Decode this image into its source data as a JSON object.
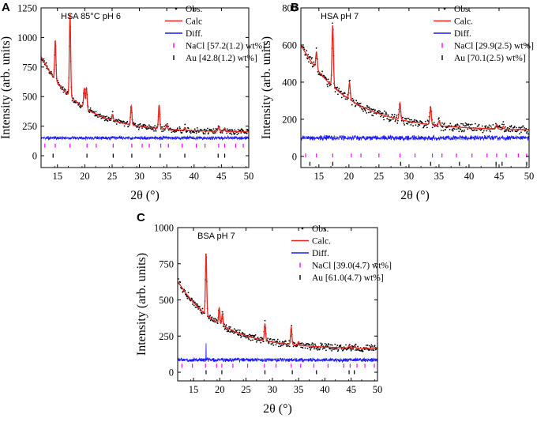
{
  "chart_data": [
    {
      "id": "A",
      "type": "line",
      "panel_letter": "A",
      "sample_label": "HSA 85°C pH 6",
      "xlabel": "2θ (°)",
      "ylabel": "Intensity (arb. units)",
      "xlim": [
        12,
        50
      ],
      "ylim": [
        -100,
        1250
      ],
      "xticks": [
        15,
        20,
        25,
        30,
        35,
        40,
        45,
        50
      ],
      "yticks": [
        0,
        250,
        500,
        750,
        1000,
        1250
      ],
      "series": [
        {
          "name": "Obs.",
          "style": "points",
          "color": "#000000"
        },
        {
          "name": "Calc.",
          "display": "Calc",
          "style": "line",
          "color": "#e8251f"
        },
        {
          "name": "Diff.",
          "style": "line",
          "color": "#1a1aff"
        },
        {
          "name": "NaCl",
          "display": "NaCl [57.2(1.2) wt%]",
          "style": "ticks",
          "color": "#ff00ff"
        },
        {
          "name": "Au",
          "display": "Au [42.8(1.2) wt%]",
          "style": "ticks",
          "color": "#000000"
        }
      ],
      "background": {
        "a": 200,
        "b": 640,
        "c": 7
      },
      "peaks": [
        {
          "x": 14.6,
          "h": 330
        },
        {
          "x": 17.3,
          "h": 700
        },
        {
          "x": 19.9,
          "h": 160
        },
        {
          "x": 20.3,
          "h": 180
        },
        {
          "x": 25.1,
          "h": 50
        },
        {
          "x": 28.5,
          "h": 160
        },
        {
          "x": 33.6,
          "h": 200
        },
        {
          "x": 35.0,
          "h": 40
        },
        {
          "x": 38.3,
          "h": 25
        },
        {
          "x": 44.5,
          "h": 40
        },
        {
          "x": 45.6,
          "h": 30
        }
      ],
      "diff_level": 150,
      "diff_noise": 22,
      "nacl_ticks": [
        12.7,
        14.6,
        17.3,
        20.4,
        22.1,
        25.2,
        28.6,
        30.5,
        31.8,
        33.9,
        35.3,
        37.8,
        40.4,
        42.0,
        44.5,
        45.6,
        47.6,
        49.0
      ],
      "nacl_level": 85,
      "au_ticks": [
        14.2,
        20.4,
        25.2,
        28.6,
        33.8,
        38.3,
        44.4,
        45.6
      ],
      "au_level": 0
    },
    {
      "id": "B",
      "type": "line",
      "panel_letter": "B",
      "sample_label": "HSA pH 7",
      "xlabel": "2θ (°)",
      "ylabel": "Intensity (arb. units)",
      "xlim": [
        12,
        50
      ],
      "ylim": [
        -60,
        800
      ],
      "xticks": [
        15,
        20,
        25,
        30,
        35,
        40,
        45,
        50
      ],
      "yticks": [
        0,
        200,
        400,
        600,
        800
      ],
      "series": [
        {
          "name": "Obs.",
          "style": "points",
          "color": "#000000"
        },
        {
          "name": "Calc.",
          "display": "Calc.",
          "style": "line",
          "color": "#e8251f"
        },
        {
          "name": "Diff.",
          "style": "line",
          "color": "#1a1aff"
        },
        {
          "name": "NaCl",
          "display": "NaCl [29.9(2.5) wt%]",
          "style": "ticks",
          "color": "#ff00ff"
        },
        {
          "name": "Au",
          "display": "Au [70.1(2.5) wt%]",
          "style": "ticks",
          "color": "#000000"
        }
      ],
      "background": {
        "a": 140,
        "b": 460,
        "c": 8
      },
      "peaks": [
        {
          "x": 14.6,
          "h": 90
        },
        {
          "x": 17.3,
          "h": 330
        },
        {
          "x": 20.1,
          "h": 90
        },
        {
          "x": 28.5,
          "h": 90
        },
        {
          "x": 33.6,
          "h": 95
        },
        {
          "x": 35.0,
          "h": 25
        },
        {
          "x": 44.6,
          "h": 25
        },
        {
          "x": 45.7,
          "h": 15
        }
      ],
      "diff_level": 100,
      "diff_noise": 20,
      "nacl_ticks": [
        12.8,
        14.6,
        17.3,
        20.4,
        22.0,
        25.0,
        28.5,
        31.0,
        33.9,
        35.5,
        37.9,
        40.5,
        43.0,
        44.6,
        46.2,
        48.2,
        49.6
      ],
      "nacl_level": 5,
      "au_ticks": [
        13.5,
        17.3,
        28.6,
        33.6,
        38.4,
        44.5,
        45.5,
        49.6
      ],
      "au_level": -40
    },
    {
      "id": "C",
      "type": "line",
      "panel_letter": "C",
      "sample_label": "BSA pH 7",
      "xlabel": "2θ (°)",
      "ylabel": "Intensity (arb. units)",
      "xlim": [
        12,
        50
      ],
      "ylim": [
        -60,
        1000
      ],
      "xticks": [
        15,
        20,
        25,
        30,
        35,
        40,
        45,
        50
      ],
      "yticks": [
        0,
        250,
        500,
        750,
        1000
      ],
      "series": [
        {
          "name": "Obs.",
          "style": "points",
          "color": "#000000"
        },
        {
          "name": "Calc.",
          "display": "Calc.",
          "style": "line",
          "color": "#e8251f"
        },
        {
          "name": "Diff.",
          "style": "line",
          "color": "#1a1aff"
        },
        {
          "name": "NaCl",
          "display": "NaCl [39.0(4.7) wt%]",
          "style": "ticks",
          "color": "#ff00ff"
        },
        {
          "name": "Au",
          "display": "Au [61.0(4.7) wt%]",
          "style": "ticks",
          "color": "#000000"
        }
      ],
      "background": {
        "a": 160,
        "b": 470,
        "c": 8
      },
      "peaks": [
        {
          "x": 17.4,
          "h": 420
        },
        {
          "x": 19.9,
          "h": 110
        },
        {
          "x": 20.5,
          "h": 80
        },
        {
          "x": 28.6,
          "h": 115
        },
        {
          "x": 33.6,
          "h": 120
        },
        {
          "x": 35.0,
          "h": 25
        },
        {
          "x": 44.6,
          "h": 20
        },
        {
          "x": 45.7,
          "h": 15
        }
      ],
      "diff_level": 85,
      "diff_noise": 20,
      "diff_spike": {
        "x": 17.4,
        "value": 200
      },
      "nacl_ticks": [
        12.8,
        14.8,
        17.3,
        19.4,
        20.4,
        22.5,
        25.3,
        28.5,
        30.7,
        33.6,
        35.4,
        37.9,
        40.6,
        43.6,
        44.8,
        46.1,
        47.6,
        49.4
      ],
      "nacl_level": 45,
      "au_ticks": [
        17.4,
        20.4,
        28.6,
        33.8,
        38.4,
        44.6,
        45.6
      ],
      "au_level": 0
    }
  ]
}
